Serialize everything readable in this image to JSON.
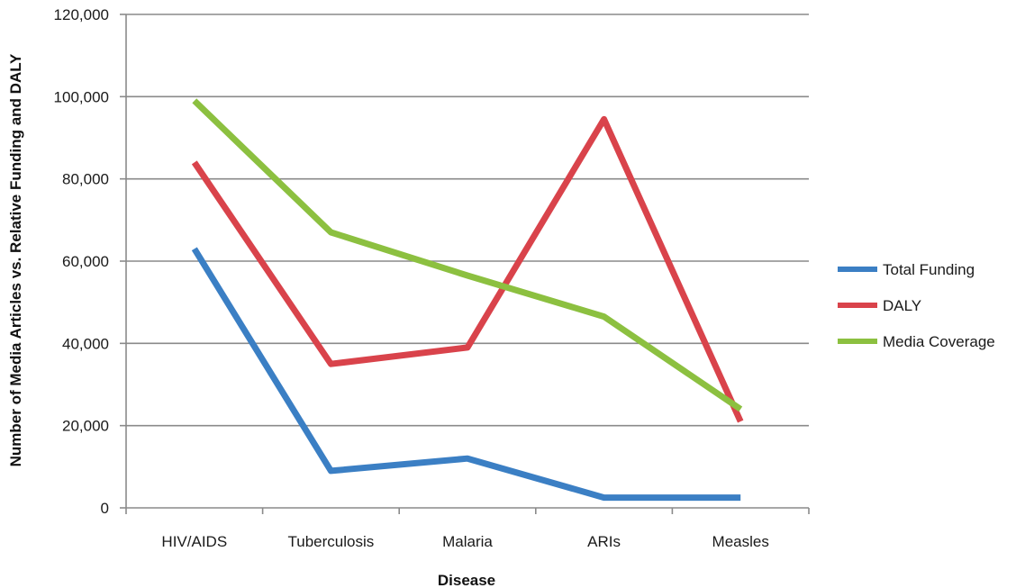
{
  "chart_data": {
    "type": "line",
    "categories": [
      "HIV/AIDS",
      "Tuberculosis",
      "Malaria",
      "ARIs",
      "Measles"
    ],
    "series": [
      {
        "name": "Total Funding",
        "color": "#3b7fc4",
        "values": [
          63000,
          9000,
          12000,
          2500,
          2500
        ]
      },
      {
        "name": "DALY",
        "color": "#d9434b",
        "values": [
          84000,
          35000,
          39000,
          94500,
          21000
        ]
      },
      {
        "name": "Media Coverage",
        "color": "#8cc040",
        "values": [
          99000,
          67000,
          56500,
          46500,
          24000
        ]
      }
    ],
    "title": "",
    "xlabel": "Disease",
    "ylabel": "Number of Media Articles vs. Relative Funding and DALY",
    "ylim": [
      0,
      120000
    ],
    "yticks": [
      "0",
      "20,000",
      "40,000",
      "60,000",
      "80,000",
      "100,000",
      "120,000"
    ],
    "grid": "horizontal",
    "legend_position": "right"
  }
}
